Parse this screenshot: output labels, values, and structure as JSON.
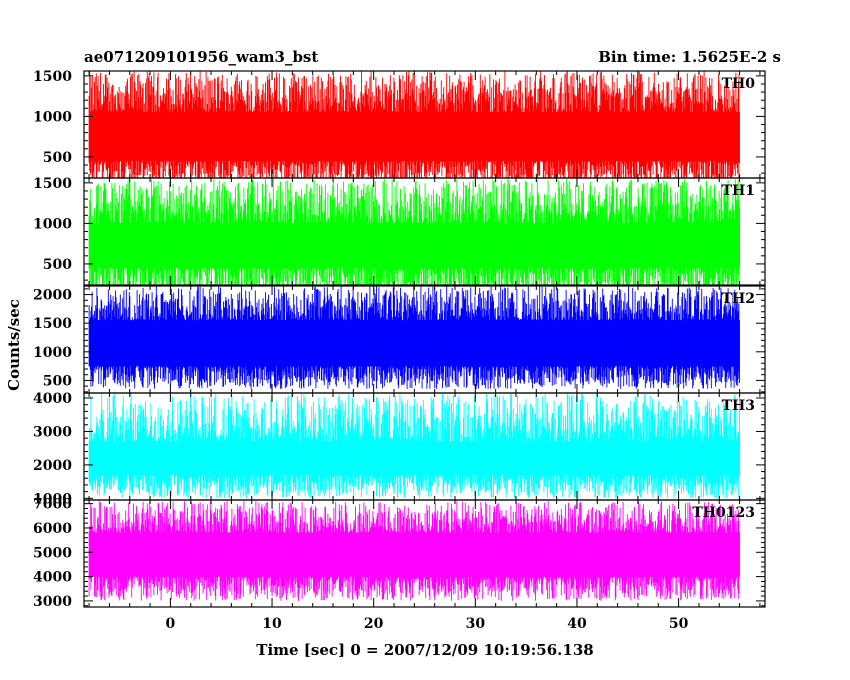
{
  "chart_data": {
    "type": "line",
    "title_left": "ae071209101956_wam3_bst",
    "title_right": "Bin time: 1.5625E-2 s",
    "xlabel": "Time [sec] 0 = 2007/12/09 10:19:56.138",
    "ylabel": "Counts/sec",
    "xlim": [
      -8.5,
      58.5
    ],
    "data_range": [
      -8,
      56
    ],
    "xticks": [
      0,
      10,
      20,
      30,
      40,
      50
    ],
    "panels": [
      {
        "name": "TH0",
        "color": "#ff0000",
        "ylim": [
          240,
          1560
        ],
        "yticks": [
          500,
          1000,
          1500
        ],
        "low": [
          160,
          300
        ],
        "high": [
          1150,
          1560
        ],
        "core": [
          450,
          1050
        ]
      },
      {
        "name": "TH1",
        "color": "#00ff00",
        "ylim": [
          240,
          1560
        ],
        "yticks": [
          500,
          1000,
          1500
        ],
        "low": [
          130,
          280
        ],
        "high": [
          1100,
          1550
        ],
        "core": [
          450,
          1000
        ]
      },
      {
        "name": "TH2",
        "color": "#0000ff",
        "ylim": [
          280,
          2150
        ],
        "yticks": [
          500,
          1000,
          1500,
          2000
        ],
        "low": [
          350,
          600
        ],
        "high": [
          1700,
          2150
        ],
        "core": [
          750,
          1550
        ]
      },
      {
        "name": "TH3",
        "color": "#00ffff",
        "ylim": [
          950,
          4150
        ],
        "yticks": [
          1000,
          2000,
          3000,
          4000
        ],
        "low": [
          1000,
          1500
        ],
        "high": [
          2800,
          4150
        ],
        "core": [
          1700,
          2700
        ]
      },
      {
        "name": "TH0123",
        "color": "#ff00ff",
        "ylim": [
          2750,
          7150
        ],
        "yticks": [
          3000,
          4000,
          5000,
          6000,
          7000
        ],
        "low": [
          3000,
          3700
        ],
        "high": [
          5800,
          7100
        ],
        "core": [
          4000,
          5800
        ]
      }
    ]
  }
}
